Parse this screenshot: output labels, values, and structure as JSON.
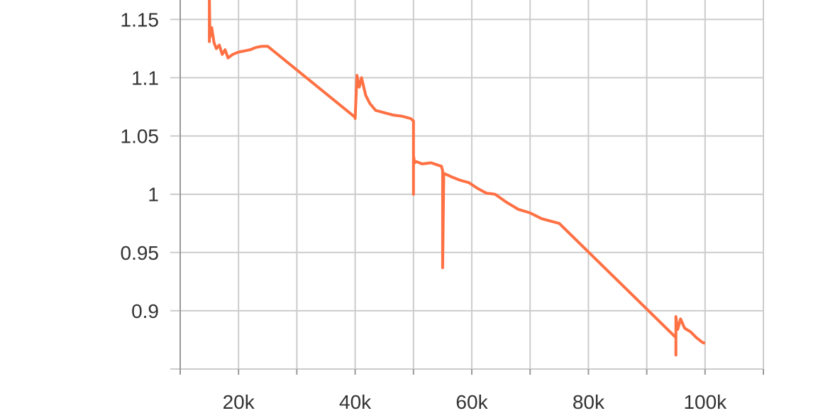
{
  "colors": {
    "series": "#ff7043",
    "grid": "#cccccc",
    "axis": "#999999",
    "text": "#333333"
  },
  "chart_data": {
    "type": "line",
    "title": "",
    "xlabel": "",
    "ylabel": "",
    "grid": true,
    "xlim": [
      10000,
      110000
    ],
    "ylim": [
      0.85,
      1.1667
    ],
    "x_ticks": [
      {
        "value": 20000,
        "label": "20k"
      },
      {
        "value": 40000,
        "label": "40k"
      },
      {
        "value": 60000,
        "label": "60k"
      },
      {
        "value": 80000,
        "label": "80k"
      },
      {
        "value": 100000,
        "label": "100k"
      }
    ],
    "x_minor_grid": [
      10000,
      30000,
      50000,
      70000,
      90000,
      110000
    ],
    "y_ticks": [
      {
        "value": 0.9,
        "label": "0.9"
      },
      {
        "value": 0.95,
        "label": "0.95"
      },
      {
        "value": 1.0,
        "label": "1"
      },
      {
        "value": 1.05,
        "label": "1.05"
      },
      {
        "value": 1.1,
        "label": "1.1"
      },
      {
        "value": 1.15,
        "label": "1.15"
      }
    ],
    "series": [
      {
        "x": [
          15000,
          15000,
          15100,
          15400,
          15800,
          16200,
          16700,
          17200,
          17700,
          18200,
          19000,
          20000,
          21000,
          22000,
          23000,
          24000,
          25000,
          40000,
          40000,
          40300,
          40700,
          41100,
          41800,
          42500,
          43500,
          45000,
          46500,
          48000,
          49500,
          50000,
          50000,
          50000,
          50200,
          50500,
          51500,
          53000,
          54800,
          55000,
          55000,
          55200,
          56500,
          58000,
          59500,
          61000,
          62500,
          64000,
          66000,
          68000,
          70000,
          72000,
          75000,
          95000,
          95000,
          95000,
          95300,
          95800,
          96500,
          97500,
          98500,
          99500,
          100000
        ],
        "y": [
          1.13,
          1.17,
          1.135,
          1.143,
          1.13,
          1.125,
          1.128,
          1.12,
          1.124,
          1.117,
          1.12,
          1.122,
          1.123,
          1.124,
          1.126,
          1.127,
          1.127,
          1.066,
          1.065,
          1.102,
          1.092,
          1.1,
          1.085,
          1.078,
          1.072,
          1.07,
          1.068,
          1.067,
          1.065,
          1.063,
          1.0,
          1.033,
          1.027,
          1.028,
          1.026,
          1.027,
          1.024,
          1.02,
          0.937,
          1.018,
          1.015,
          1.012,
          1.01,
          1.005,
          1.001,
          1.0,
          0.993,
          0.987,
          0.984,
          0.979,
          0.975,
          0.877,
          0.862,
          0.895,
          0.884,
          0.893,
          0.885,
          0.882,
          0.877,
          0.873,
          0.872
        ]
      }
    ]
  }
}
